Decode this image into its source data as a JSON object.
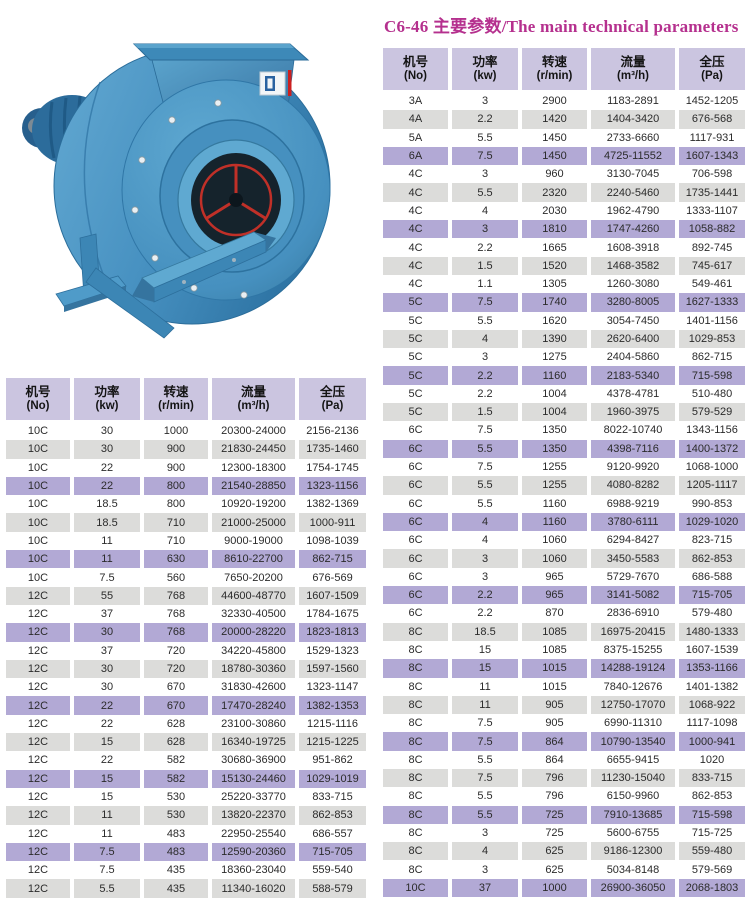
{
  "title": "C6-46 主要参数/The main technical parameters",
  "colors": {
    "title": "#b5308e",
    "header_bg": "#cbc5e0",
    "row_gray": "#dcdcda",
    "row_purple": "#b2a9d5",
    "fan_body_blue": "#4791c1",
    "fan_dark_blue": "#2d6f9e",
    "impeller_red": "#c03028"
  },
  "columns": [
    {
      "key": "no",
      "zh": "机号",
      "en": "(No)"
    },
    {
      "key": "kw",
      "zh": "功率",
      "en": "(kw)"
    },
    {
      "key": "rpm",
      "zh": "转速",
      "en": "(r/min)"
    },
    {
      "key": "flow",
      "zh": "流量",
      "en": "(m³/h)"
    },
    {
      "key": "pressure",
      "zh": "全压",
      "en": "(Pa)"
    }
  ],
  "tables": {
    "right": {
      "rows": [
        [
          "3A",
          "3",
          "2900",
          "1183-2891",
          "1452-1205"
        ],
        [
          "4A",
          "2.2",
          "1420",
          "1404-3420",
          "676-568"
        ],
        [
          "5A",
          "5.5",
          "1450",
          "2733-6660",
          "1117-931"
        ],
        [
          "6A",
          "7.5",
          "1450",
          "4725-11552",
          "1607-1343"
        ],
        [
          "4C",
          "3",
          "960",
          "3130-7045",
          "706-598"
        ],
        [
          "4C",
          "5.5",
          "2320",
          "2240-5460",
          "1735-1441"
        ],
        [
          "4C",
          "4",
          "2030",
          "1962-4790",
          "1333-1107"
        ],
        [
          "4C",
          "3",
          "1810",
          "1747-4260",
          "1058-882"
        ],
        [
          "4C",
          "2.2",
          "1665",
          "1608-3918",
          "892-745"
        ],
        [
          "4C",
          "1.5",
          "1520",
          "1468-3582",
          "745-617"
        ],
        [
          "4C",
          "1.1",
          "1305",
          "1260-3080",
          "549-461"
        ],
        [
          "5C",
          "7.5",
          "1740",
          "3280-8005",
          "1627-1333"
        ],
        [
          "5C",
          "5.5",
          "1620",
          "3054-7450",
          "1401-1156"
        ],
        [
          "5C",
          "4",
          "1390",
          "2620-6400",
          "1029-853"
        ],
        [
          "5C",
          "3",
          "1275",
          "2404-5860",
          "862-715"
        ],
        [
          "5C",
          "2.2",
          "1160",
          "2183-5340",
          "715-598"
        ],
        [
          "5C",
          "2.2",
          "1004",
          "4378-4781",
          "510-480"
        ],
        [
          "5C",
          "1.5",
          "1004",
          "1960-3975",
          "579-529"
        ],
        [
          "6C",
          "7.5",
          "1350",
          "8022-10740",
          "1343-1156"
        ],
        [
          "6C",
          "5.5",
          "1350",
          "4398-7116",
          "1400-1372"
        ],
        [
          "6C",
          "7.5",
          "1255",
          "9120-9920",
          "1068-1000"
        ],
        [
          "6C",
          "5.5",
          "1255",
          "4080-8282",
          "1205-1117"
        ],
        [
          "6C",
          "5.5",
          "1160",
          "6988-9219",
          "990-853"
        ],
        [
          "6C",
          "4",
          "1160",
          "3780-6111",
          "1029-1020"
        ],
        [
          "6C",
          "4",
          "1060",
          "6294-8427",
          "823-715"
        ],
        [
          "6C",
          "3",
          "1060",
          "3450-5583",
          "862-853"
        ],
        [
          "6C",
          "3",
          "965",
          "5729-7670",
          "686-588"
        ],
        [
          "6C",
          "2.2",
          "965",
          "3141-5082",
          "715-705"
        ],
        [
          "6C",
          "2.2",
          "870",
          "2836-6910",
          "579-480"
        ],
        [
          "8C",
          "18.5",
          "1085",
          "16975-20415",
          "1480-1333"
        ],
        [
          "8C",
          "15",
          "1085",
          "8375-15255",
          "1607-1539"
        ],
        [
          "8C",
          "15",
          "1015",
          "14288-19124",
          "1353-1166"
        ],
        [
          "8C",
          "11",
          "1015",
          "7840-12676",
          "1401-1382"
        ],
        [
          "8C",
          "11",
          "905",
          "12750-17070",
          "1068-922"
        ],
        [
          "8C",
          "7.5",
          "905",
          "6990-11310",
          "1117-1098"
        ],
        [
          "8C",
          "7.5",
          "864",
          "10790-13540",
          "1000-941"
        ],
        [
          "8C",
          "5.5",
          "864",
          "6655-9415",
          "1020"
        ],
        [
          "8C",
          "7.5",
          "796",
          "11230-15040",
          "833-715"
        ],
        [
          "8C",
          "5.5",
          "796",
          "6150-9960",
          "862-853"
        ],
        [
          "8C",
          "5.5",
          "725",
          "7910-13685",
          "715-598"
        ],
        [
          "8C",
          "3",
          "725",
          "5600-6755",
          "715-725"
        ],
        [
          "8C",
          "4",
          "625",
          "9186-12300",
          "559-480"
        ],
        [
          "8C",
          "3",
          "625",
          "5034-8148",
          "579-569"
        ],
        [
          "10C",
          "37",
          "1000",
          "26900-36050",
          "2068-1803"
        ]
      ]
    },
    "left": {
      "rows": [
        [
          "10C",
          "30",
          "1000",
          "20300-24000",
          "2156-2136"
        ],
        [
          "10C",
          "30",
          "900",
          "21830-24450",
          "1735-1460"
        ],
        [
          "10C",
          "22",
          "900",
          "12300-18300",
          "1754-1745"
        ],
        [
          "10C",
          "22",
          "800",
          "21540-28850",
          "1323-1156"
        ],
        [
          "10C",
          "18.5",
          "800",
          "10920-19200",
          "1382-1369"
        ],
        [
          "10C",
          "18.5",
          "710",
          "21000-25000",
          "1000-911"
        ],
        [
          "10C",
          "11",
          "710",
          "9000-19000",
          "1098-1039"
        ],
        [
          "10C",
          "11",
          "630",
          "8610-22700",
          "862-715"
        ],
        [
          "10C",
          "7.5",
          "560",
          "7650-20200",
          "676-569"
        ],
        [
          "12C",
          "55",
          "768",
          "44600-48770",
          "1607-1509"
        ],
        [
          "12C",
          "37",
          "768",
          "32330-40500",
          "1784-1675"
        ],
        [
          "12C",
          "30",
          "768",
          "20000-28220",
          "1823-1813"
        ],
        [
          "12C",
          "37",
          "720",
          "34220-45800",
          "1529-1323"
        ],
        [
          "12C",
          "30",
          "720",
          "18780-30360",
          "1597-1560"
        ],
        [
          "12C",
          "30",
          "670",
          "31830-42600",
          "1323-1147"
        ],
        [
          "12C",
          "22",
          "670",
          "17470-28240",
          "1382-1353"
        ],
        [
          "12C",
          "22",
          "628",
          "23100-30860",
          "1215-1116"
        ],
        [
          "12C",
          "15",
          "628",
          "16340-19725",
          "1215-1225"
        ],
        [
          "12C",
          "22",
          "582",
          "30680-36900",
          "951-862"
        ],
        [
          "12C",
          "15",
          "582",
          "15130-24460",
          "1029-1019"
        ],
        [
          "12C",
          "15",
          "530",
          "25220-33770",
          "833-715"
        ],
        [
          "12C",
          "11",
          "530",
          "13820-22370",
          "862-853"
        ],
        [
          "12C",
          "11",
          "483",
          "22950-25540",
          "686-557"
        ],
        [
          "12C",
          "7.5",
          "483",
          "12590-20360",
          "715-705"
        ],
        [
          "12C",
          "7.5",
          "435",
          "18360-23040",
          "559-540"
        ],
        [
          "12C",
          "5.5",
          "435",
          "11340-16020",
          "588-579"
        ]
      ]
    }
  }
}
